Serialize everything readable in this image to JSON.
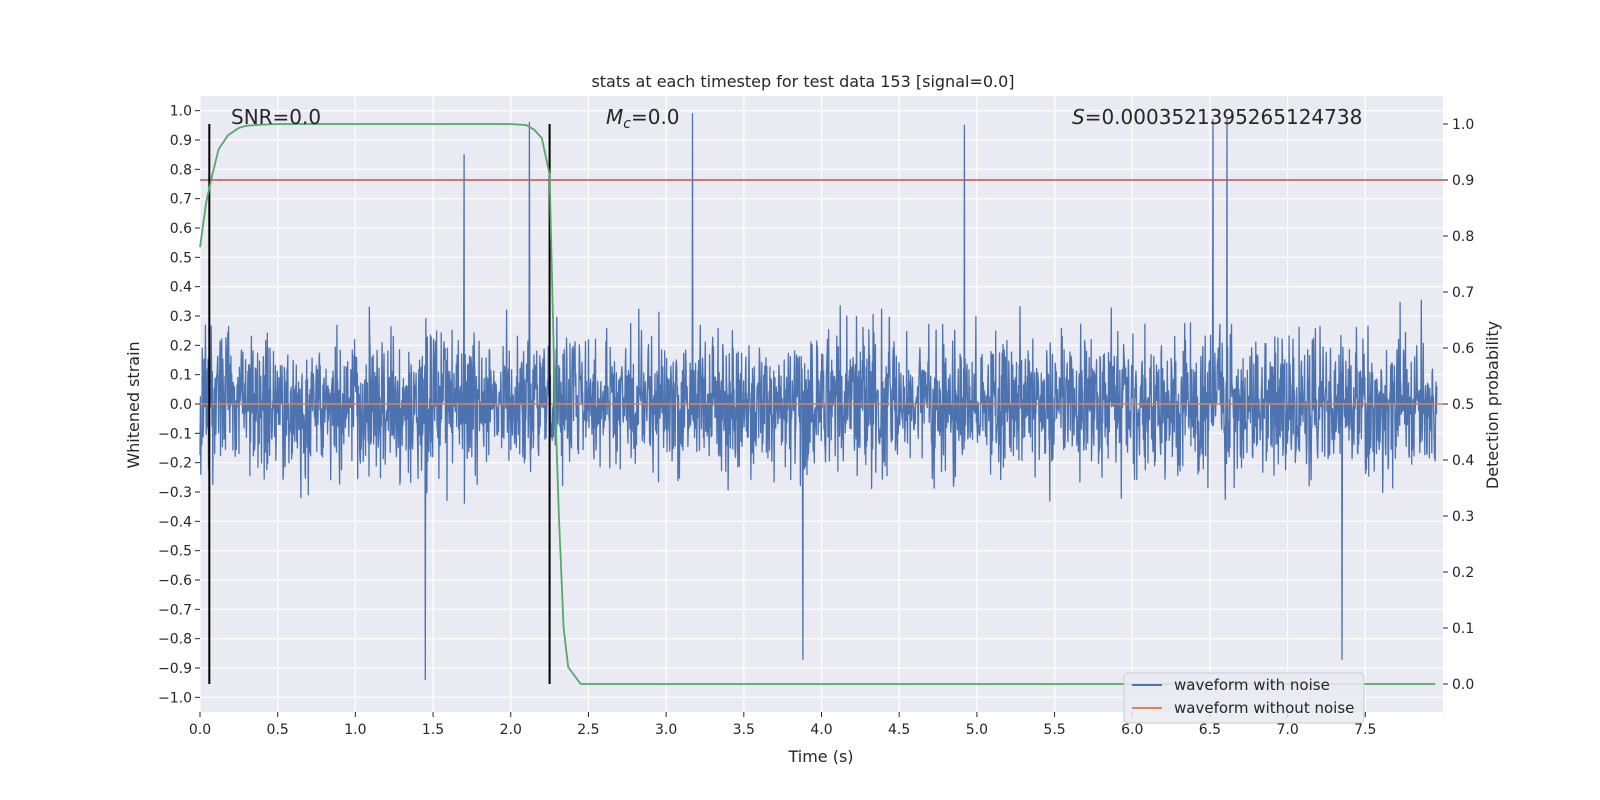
{
  "chart_data": {
    "type": "line",
    "title": "stats at each timestep for test data 153 [signal=0.0]",
    "xlabel": "Time (s)",
    "ylabel": "Whitened strain",
    "ylabel_right": "Detection probability",
    "xlim": [
      0.0,
      8.0
    ],
    "ylim": [
      -1.05,
      1.05
    ],
    "ylim_right": [
      -0.05,
      1.05
    ],
    "x_ticks": [
      "0.0",
      "0.5",
      "1.0",
      "1.5",
      "2.0",
      "2.5",
      "3.0",
      "3.5",
      "4.0",
      "4.5",
      "5.0",
      "5.5",
      "6.0",
      "6.5",
      "7.0",
      "7.5"
    ],
    "y_ticks": [
      "1.0",
      "0.9",
      "0.8",
      "0.7",
      "0.6",
      "0.5",
      "0.4",
      "0.3",
      "0.2",
      "0.1",
      "0.0",
      "-0.1",
      "-0.2",
      "-0.3",
      "-0.4",
      "-0.5",
      "-0.6",
      "-0.7",
      "-0.8",
      "-0.9",
      "-1.0"
    ],
    "y_ticks_right": [
      "1.0",
      "0.9",
      "0.8",
      "0.7",
      "0.6",
      "0.5",
      "0.4",
      "0.3",
      "0.2",
      "0.1",
      "0.0"
    ],
    "annotations": {
      "snr": "SNR=0.0",
      "mc_symbol": "M",
      "mc_sub": "c",
      "mc_value": "=0.0",
      "s_symbol": "S",
      "s_value": "=0.0003521395265124738"
    },
    "legend": {
      "placement": "lower right",
      "entries": [
        "waveform with noise",
        "waveform without noise"
      ]
    },
    "grid": true,
    "series": [
      {
        "name": "waveform with noise",
        "color": "#4c72b0",
        "note": "dense noise, amplitude mostly within ±0.5, peaks up to ±1.0",
        "peaks": [
          {
            "x": 1.45,
            "y": -0.94
          },
          {
            "x": 1.7,
            "y": 0.85
          },
          {
            "x": 2.12,
            "y": 0.96
          },
          {
            "x": 3.17,
            "y": 0.99
          },
          {
            "x": 3.88,
            "y": -0.87
          },
          {
            "x": 4.92,
            "y": 0.95
          },
          {
            "x": 6.52,
            "y": 0.97
          },
          {
            "x": 6.61,
            "y": 0.97
          },
          {
            "x": 7.35,
            "y": -0.87
          }
        ]
      },
      {
        "name": "waveform without noise",
        "color": "#dd8452",
        "x": [
          0.0,
          8.0
        ],
        "y": [
          0.0,
          0.0
        ]
      },
      {
        "name": "detection probability",
        "color": "#55a868",
        "axis": "right",
        "x": [
          0.0,
          0.04,
          0.08,
          0.12,
          0.18,
          0.25,
          0.3,
          0.4,
          0.5,
          1.0,
          1.5,
          2.0,
          2.1,
          2.15,
          2.2,
          2.25,
          2.28,
          2.31,
          2.34,
          2.37,
          2.45,
          3.0,
          4.0,
          5.0,
          6.0,
          7.0,
          7.95
        ],
        "y": [
          0.78,
          0.86,
          0.91,
          0.955,
          0.98,
          0.993,
          0.997,
          0.999,
          1.0,
          1.0,
          1.0,
          1.0,
          0.998,
          0.99,
          0.975,
          0.91,
          0.55,
          0.3,
          0.1,
          0.03,
          0.0,
          0.0,
          0.0,
          0.0,
          0.0,
          0.0,
          0.0
        ]
      }
    ],
    "threshold_line": {
      "y_right": 0.9,
      "color": "#c44e52"
    },
    "vertical_markers": {
      "x": [
        0.06,
        2.25
      ],
      "color": "#000000"
    },
    "zero_line": {
      "y": 0.0,
      "color": "#dd8452"
    }
  }
}
